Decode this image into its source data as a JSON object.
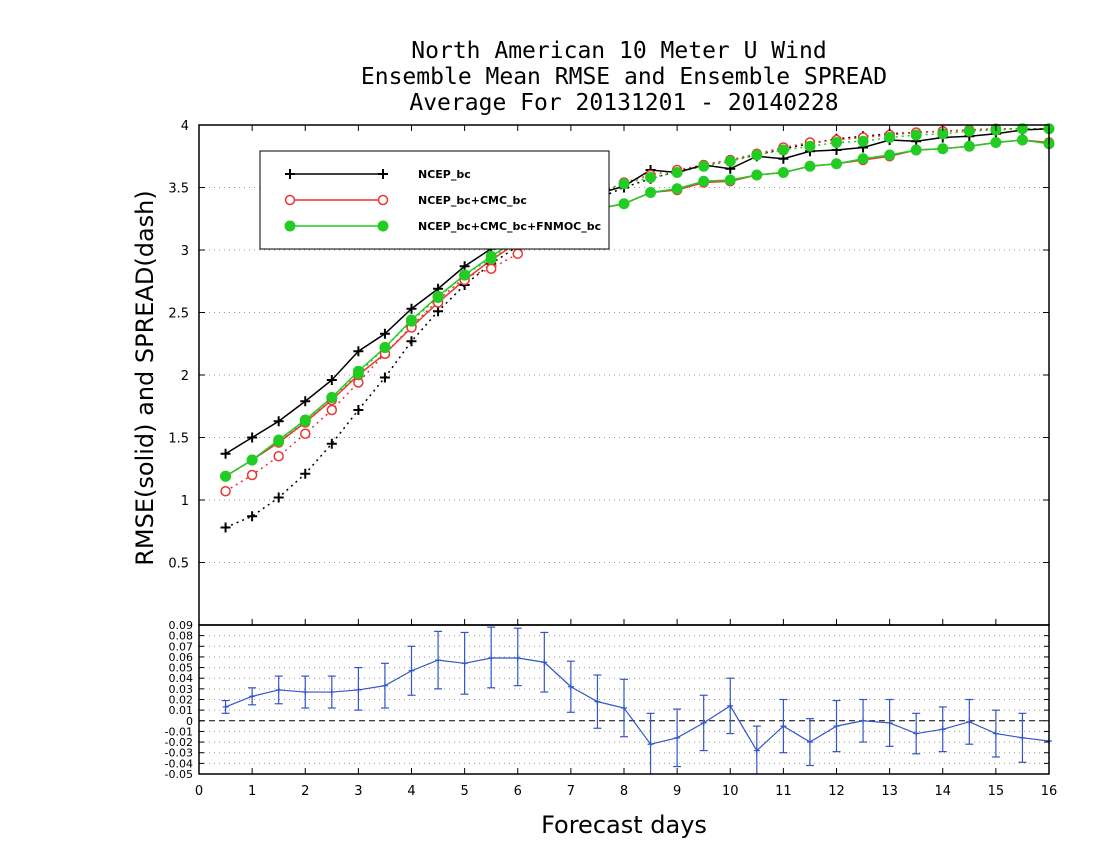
{
  "chart_data": [
    {
      "type": "line",
      "title": [
        "North American 10 Meter U Wind",
        "Ensemble Mean RMSE and Ensemble SPREAD",
        "Average For 20131201 - 20140228"
      ],
      "ylabel": "RMSE(solid) and SPREAD(dash)",
      "ylim": [
        0,
        4
      ],
      "yticks": [
        "0.5",
        "1",
        "1.5",
        "2",
        "2.5",
        "3",
        "3.5",
        "4"
      ],
      "xlim": [
        0,
        16
      ],
      "grid": true,
      "legend_position": "top-left",
      "x": [
        0.5,
        1,
        1.5,
        2,
        2.5,
        3,
        3.5,
        4,
        4.5,
        5,
        5.5,
        6,
        6.5,
        7,
        7.5,
        8,
        8.5,
        9,
        9.5,
        10,
        10.5,
        11,
        11.5,
        12,
        12.5,
        13,
        13.5,
        14,
        14.5,
        15,
        15.5,
        16
      ],
      "series": [
        {
          "name": "NCEP_bc",
          "color": "#000000",
          "marker": "plus",
          "rmse": [
            1.37,
            1.5,
            1.63,
            1.79,
            1.96,
            2.19,
            2.33,
            2.53,
            2.69,
            2.87,
            3.01,
            3.14,
            3.28,
            3.38,
            3.45,
            3.51,
            3.64,
            3.62,
            3.68,
            3.65,
            3.75,
            3.73,
            3.79,
            3.8,
            3.82,
            3.88,
            3.87,
            3.9,
            3.91,
            3.93,
            3.96,
            3.97
          ],
          "spread": [
            0.78,
            0.87,
            1.02,
            1.21,
            1.45,
            1.72,
            1.98,
            2.27,
            2.51,
            2.72,
            2.89,
            3.03,
            3.17,
            3.3,
            3.41,
            3.5,
            3.57,
            3.63,
            3.68,
            3.72,
            3.76,
            3.81,
            3.85,
            3.89,
            3.91,
            3.93,
            3.94,
            3.95,
            3.96,
            3.97,
            3.97,
            3.97
          ]
        },
        {
          "name": "NCEP_bc+CMC_bc",
          "color": "#ee3333",
          "marker": "open-circle",
          "rmse": [
            1.19,
            1.32,
            1.46,
            1.62,
            1.8,
            2.0,
            2.17,
            2.38,
            2.58,
            2.76,
            2.92,
            3.06,
            3.18,
            3.27,
            3.33,
            3.37,
            3.46,
            3.48,
            3.54,
            3.55,
            3.6,
            3.62,
            3.67,
            3.69,
            3.72,
            3.75,
            3.8,
            3.81,
            3.83,
            3.86,
            3.88,
            3.86
          ],
          "spread": [
            1.07,
            1.2,
            1.35,
            1.53,
            1.72,
            1.94,
            2.17,
            2.39,
            2.6,
            2.78,
            2.85,
            2.97,
            3.15,
            3.32,
            3.45,
            3.54,
            3.6,
            3.64,
            3.68,
            3.72,
            3.77,
            3.82,
            3.86,
            3.88,
            3.9,
            3.92,
            3.94,
            3.95,
            3.96,
            3.97,
            3.97,
            3.97
          ]
        },
        {
          "name": "NCEP_bc+CMC_bc+FNMOC_bc",
          "color": "#22cc22",
          "marker": "filled-circle",
          "rmse": [
            1.19,
            1.32,
            1.48,
            1.64,
            1.82,
            2.03,
            2.22,
            2.44,
            2.63,
            2.8,
            2.95,
            3.08,
            3.2,
            3.28,
            3.33,
            3.37,
            3.46,
            3.49,
            3.55,
            3.56,
            3.6,
            3.62,
            3.67,
            3.69,
            3.73,
            3.76,
            3.8,
            3.81,
            3.83,
            3.86,
            3.88,
            3.85
          ],
          "spread": [
            1.19,
            1.32,
            1.47,
            1.63,
            1.82,
            2.01,
            2.22,
            2.43,
            2.62,
            2.8,
            2.93,
            3.07,
            3.23,
            3.36,
            3.45,
            3.53,
            3.58,
            3.62,
            3.67,
            3.71,
            3.76,
            3.8,
            3.83,
            3.86,
            3.87,
            3.9,
            3.92,
            3.93,
            3.95,
            3.96,
            3.97,
            3.97
          ]
        }
      ]
    },
    {
      "type": "line",
      "xlabel": "Forecast days",
      "xlim": [
        0,
        16
      ],
      "xticks": [
        "0",
        "1",
        "2",
        "3",
        "4",
        "5",
        "6",
        "7",
        "8",
        "9",
        "10",
        "11",
        "12",
        "13",
        "14",
        "15",
        "16"
      ],
      "ylim": [
        -0.05,
        0.09
      ],
      "yticks": [
        "0.09",
        "0.08",
        "0.07",
        "0.06",
        "0.05",
        "0.04",
        "0.03",
        "0.02",
        "0.01",
        "0",
        "-0.01",
        "-0.02",
        "-0.03",
        "-0.04",
        "-0.05"
      ],
      "grid": true,
      "zero_line": 0,
      "color": "#3355cc",
      "x": [
        0.5,
        1,
        1.5,
        2,
        2.5,
        3,
        3.5,
        4,
        4.5,
        5,
        5.5,
        6,
        6.5,
        7,
        7.5,
        8,
        8.5,
        9,
        9.5,
        10,
        10.5,
        11,
        11.5,
        12,
        12.5,
        13,
        13.5,
        14,
        14.5,
        15,
        15.5,
        16
      ],
      "values": [
        0.013,
        0.023,
        0.029,
        0.027,
        0.027,
        0.029,
        0.033,
        0.047,
        0.057,
        0.054,
        0.059,
        0.059,
        0.055,
        0.032,
        0.018,
        0.012,
        -0.022,
        -0.016,
        -0.002,
        0.014,
        -0.028,
        -0.005,
        -0.02,
        -0.005,
        -0.0,
        -0.002,
        -0.012,
        -0.008,
        -0.001,
        -0.012,
        -0.016,
        -0.019
      ],
      "err_upper": [
        0.019,
        0.031,
        0.042,
        0.042,
        0.042,
        0.05,
        0.054,
        0.07,
        0.084,
        0.083,
        0.088,
        0.087,
        0.083,
        0.056,
        0.043,
        0.039,
        0.007,
        0.011,
        0.024,
        0.04,
        -0.005,
        0.02,
        0.002,
        0.019,
        0.02,
        0.02,
        0.007,
        0.013,
        0.02,
        0.01,
        0.007,
        -0.019
      ],
      "err_lower": [
        0.007,
        0.015,
        0.016,
        0.012,
        0.012,
        0.01,
        0.012,
        0.024,
        0.03,
        0.025,
        0.031,
        0.033,
        0.027,
        0.008,
        -0.007,
        -0.015,
        -0.051,
        -0.043,
        -0.028,
        -0.012,
        -0.051,
        -0.03,
        -0.042,
        -0.029,
        -0.02,
        -0.024,
        -0.031,
        -0.029,
        -0.022,
        -0.034,
        -0.039,
        -0.019
      ]
    }
  ]
}
